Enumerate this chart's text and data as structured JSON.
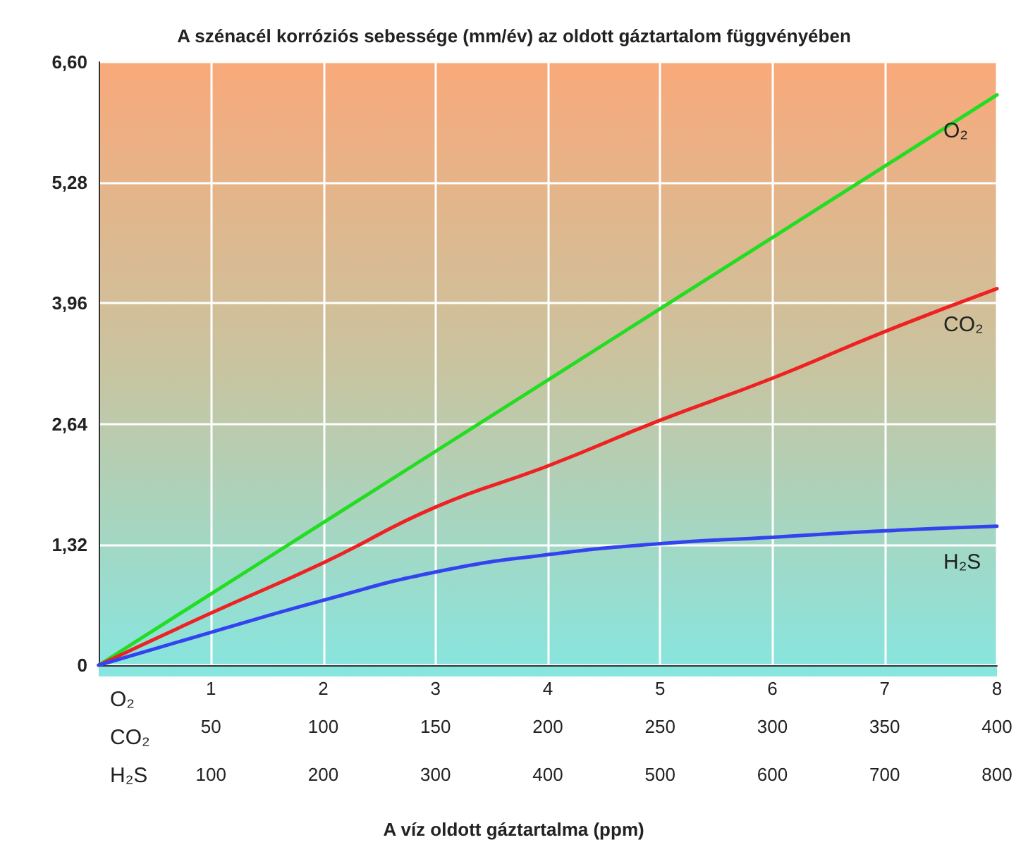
{
  "chart_data": {
    "type": "line",
    "title": "A szénacél korróziós sebessége (mm/év) az oldott gáztartalom függvényében",
    "xlabel": "A víz oldott gáztartalma (ppm)",
    "annotations": [
      "O₂",
      "CO₂",
      "H₂S",
      "100",
      "200",
      "300",
      "400",
      "500",
      "600",
      "700",
      "800"
    ],
    "x": [
      0,
      1,
      2,
      3,
      4,
      5,
      6,
      7,
      8
    ],
    "series": [
      {
        "name": "O₂",
        "color": "#22dd22",
        "values": [
          0,
          0.78,
          1.56,
          2.34,
          3.12,
          3.9,
          4.68,
          5.46,
          6.24
        ]
      },
      {
        "name": "CO₂",
        "color": "#ee2222",
        "values": [
          0,
          0.57,
          1.12,
          1.73,
          2.18,
          2.68,
          3.14,
          3.65,
          4.12
        ]
      },
      {
        "name": "H₂S",
        "color": "#3344ee",
        "values": [
          0,
          0.36,
          0.71,
          1.02,
          1.21,
          1.33,
          1.4,
          1.47,
          1.52
        ]
      }
    ],
    "xlim": [
      0,
      8
    ],
    "xticks": [
      1,
      2,
      3,
      4,
      5,
      6,
      7,
      8
    ],
    "x2lim": [
      0,
      400
    ],
    "x2ticks": [
      50,
      100,
      150,
      200,
      250,
      300,
      350,
      400
    ],
    "ylim": [
      0,
      6.6
    ],
    "yticks": [
      {
        "value": 0,
        "label": "0"
      },
      {
        "value": 1.32,
        "label": "1,32"
      },
      {
        "value": 2.64,
        "label": "2,64"
      },
      {
        "value": 3.96,
        "label": "3,96"
      },
      {
        "value": 5.28,
        "label": "5,28"
      },
      {
        "value": 6.6,
        "label": "6,60"
      }
    ],
    "grid": true,
    "legend": false,
    "marker": "none",
    "line_style": "solid"
  }
}
